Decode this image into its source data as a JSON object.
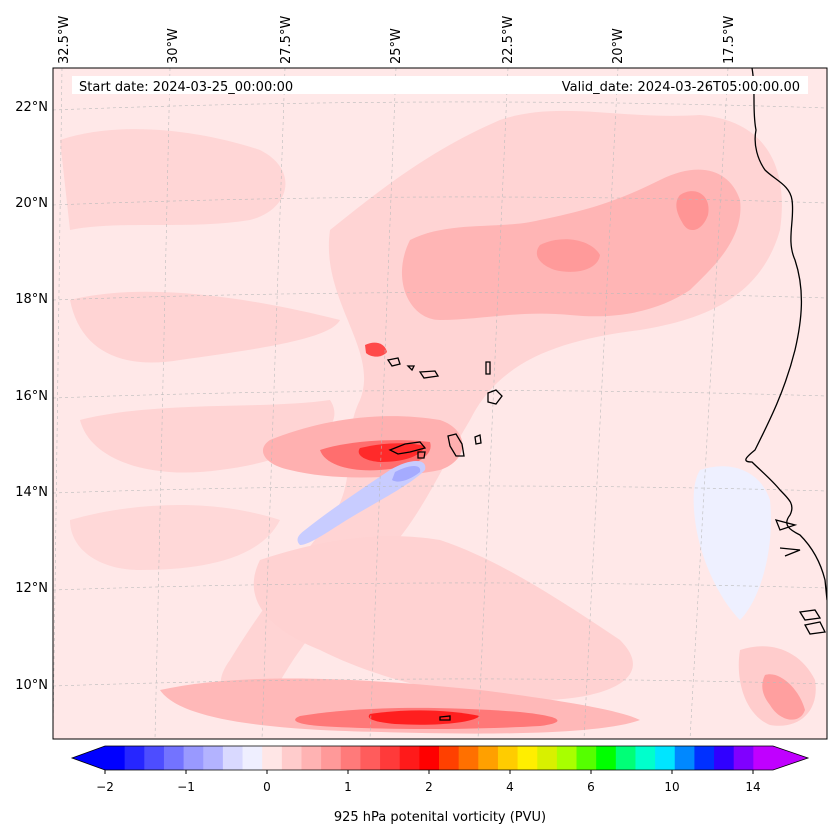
{
  "header": {
    "start_date": "Start date: 2024-03-25_00:00:00",
    "valid_date": "Valid_date: 2024-03-26T05:00:00.00"
  },
  "map": {
    "projection": "tilted conic grid",
    "lon_labels": [
      "32.5°W",
      "30°W",
      "27.5°W",
      "25°W",
      "22.5°W",
      "20°W",
      "17.5°W"
    ],
    "lat_labels": [
      "22°N",
      "20°N",
      "18°N",
      "16°N",
      "14°N",
      "12°N",
      "10°N"
    ],
    "gridlines": true,
    "features": [
      "Cape Verde islands",
      "West African coastline"
    ]
  },
  "colorbar": {
    "label": "925 hPa potenital vorticity (PVU)",
    "tick_labels": [
      "−2",
      "−1",
      "0",
      "1",
      "2",
      "4",
      "6",
      "10",
      "14"
    ],
    "colors": [
      "#0000ff",
      "#2626ff",
      "#4d4dff",
      "#7373ff",
      "#9999ff",
      "#b3b3ff",
      "#d9d9ff",
      "#efefff",
      "#ffe6e6",
      "#ffcccc",
      "#ffb3b3",
      "#ff9999",
      "#ff7a7a",
      "#ff5c5c",
      "#ff3a3a",
      "#ff1a1a",
      "#ff0000",
      "#ff4000",
      "#ff7000",
      "#ffa000",
      "#ffcc00",
      "#ffee00",
      "#d8f000",
      "#a8ff00",
      "#55ff00",
      "#00ff00",
      "#00ff77",
      "#00ffcc",
      "#00e5ff",
      "#0088ff",
      "#0030ff",
      "#3000ff",
      "#8000ff",
      "#c000ff"
    ],
    "extend": "both"
  },
  "colors": {
    "background_field": "#ffe8e8",
    "light_pink": "#ffd0d0",
    "medium_pink": "#ffb3b3",
    "strong_red": "#ff2a2a",
    "light_blue": "#d8dcff"
  }
}
